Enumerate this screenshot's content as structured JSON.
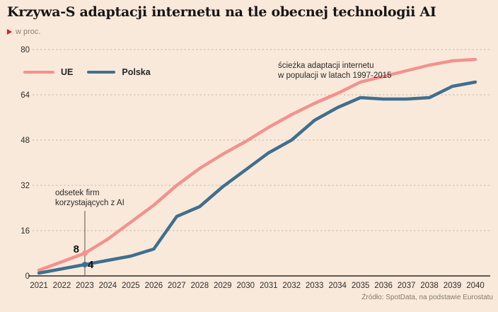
{
  "chart_data": {
    "type": "line",
    "title": "Krzywa-S adaptacji internetu na tle obecnej technologii AI",
    "unit_label": "w proc.",
    "categories": [
      "2021",
      "2022",
      "2023",
      "2024",
      "2025",
      "2026",
      "2027",
      "2028",
      "2029",
      "2030",
      "2031",
      "2032",
      "2033",
      "2034",
      "2035",
      "2036",
      "2037",
      "2038",
      "2039",
      "2040"
    ],
    "series": [
      {
        "name": "UE",
        "color": "#f3928e",
        "values": [
          2,
          5,
          8,
          13,
          19,
          25,
          32,
          38,
          43,
          47.5,
          52.5,
          57,
          61,
          64.5,
          68.5,
          70.5,
          72.5,
          74.5,
          76,
          76.5
        ]
      },
      {
        "name": "Polska",
        "color": "#3f6f8e",
        "values": [
          1,
          2.5,
          4,
          5.5,
          7,
          9.5,
          21,
          24.5,
          31.5,
          37.5,
          43.5,
          48,
          55,
          59.5,
          63,
          62.5,
          62.5,
          63,
          67,
          68.5
        ]
      }
    ],
    "ylim": [
      0,
      80
    ],
    "yticks": [
      0,
      16,
      32,
      48,
      64,
      80
    ],
    "grid": "horizontal-dashed",
    "legend_position": "top-left",
    "annotations": {
      "internet_path": {
        "line1": "ścieżka adaptacji internetu",
        "line2": "w populacji w latach 1997-2015"
      },
      "ai_callout": {
        "line1": "odsetek firm",
        "line2": "korzystających z AI",
        "category": "2023",
        "ue_value": 8,
        "polska_value": 4
      }
    },
    "source": "Źródło: SpotData, na podstawie Eurostatu",
    "colors": {
      "background": "#f9e9da",
      "accent_red": "#e11b22",
      "grid": "#c3baab",
      "axis": "#2b2b2b",
      "callout_line": "#57534b",
      "text": "#161616",
      "muted_text": "#8a8275"
    }
  }
}
